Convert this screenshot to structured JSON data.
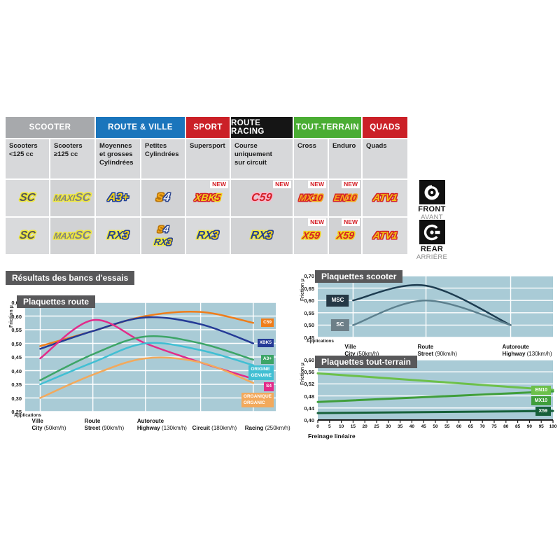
{
  "table": {
    "new_label": "NEW",
    "groups": [
      {
        "label": "SCOOTER",
        "color": "#a7a9ac",
        "span": 2
      },
      {
        "label": "ROUTE & VILLE",
        "color": "#1a75bc",
        "span": 2
      },
      {
        "label": "SPORT",
        "color": "#cb2027",
        "span": 1
      },
      {
        "label": "ROUTE RACING",
        "color": "#151515",
        "span": 1
      },
      {
        "label": "TOUT-TERRAIN",
        "color": "#4aad33",
        "span": 2
      },
      {
        "label": "QUADS",
        "color": "#cb2027",
        "span": 1
      }
    ],
    "subheaders": [
      "Scooters\n<125 cc",
      "Scooters\n≥125 cc",
      "Moyennes\net grosses\nCylindrées",
      "Petites\nCylindrées",
      "Supersport",
      "Course\nuniquement\nsur circuit",
      "Cross",
      "Enduro",
      "Quads"
    ],
    "rows": [
      {
        "side": "front",
        "cells": [
          {
            "logos": [
              [
                {
                  "t": "SC",
                  "c": "#55565a",
                  "o": "#eee73d"
                }
              ]
            ]
          },
          {
            "logos": [
              [
                {
                  "t": "MAXI",
                  "c": "#808184",
                  "o": "#eee73d",
                  "fs": 12
                },
                {
                  "t": "SC",
                  "c": "#808184",
                  "o": "#eee73d",
                  "small": true
                }
              ]
            ]
          },
          {
            "logos": [
              [
                {
                  "t": "A3+",
                  "c": "#f2d11b",
                  "o": "#1e3f9a"
                }
              ]
            ]
          },
          {
            "logos": [
              [
                {
                  "t": "S",
                  "c": "#f5a81c",
                  "o": "#b97508"
                },
                {
                  "t": "4",
                  "c": "#e8ebf4",
                  "o": "#27418d"
                }
              ]
            ]
          },
          {
            "new": true,
            "logos": [
              [
                {
                  "t": "XBK",
                  "c": "#f2d11b",
                  "o": "#d42027",
                  "fs": 14
                },
                {
                  "t": "5",
                  "c": "#d42027",
                  "o": "#f2d11b",
                  "fs": 14
                }
              ]
            ]
          },
          {
            "new": true,
            "logos": [
              [
                {
                  "t": "C59",
                  "c": "#d42027",
                  "o": "#f8b8cd"
                }
              ]
            ]
          },
          {
            "new": true,
            "logos": [
              [
                {
                  "t": "MX",
                  "c": "#f5a81c",
                  "o": "#d42027",
                  "fs": 13
                },
                {
                  "t": "10",
                  "c": "#d42027",
                  "o": "#f5a81c",
                  "fs": 13
                }
              ]
            ]
          },
          {
            "new": true,
            "logos": [
              [
                {
                  "t": "EN",
                  "c": "#f5a81c",
                  "o": "#d42027",
                  "fs": 13
                },
                {
                  "t": "10",
                  "c": "#d42027",
                  "o": "#f5a81c",
                  "fs": 13
                }
              ]
            ]
          },
          {
            "logos": [
              [
                {
                  "t": "ATV1",
                  "c": "#f2c513",
                  "o": "#d42027",
                  "fs": 14
                }
              ]
            ]
          }
        ]
      },
      {
        "side": "rear",
        "cells": [
          {
            "logos": [
              [
                {
                  "t": "SC",
                  "c": "#55565a",
                  "o": "#eee73d"
                }
              ]
            ]
          },
          {
            "logos": [
              [
                {
                  "t": "MAXI",
                  "c": "#808184",
                  "o": "#eee73d",
                  "fs": 12
                },
                {
                  "t": "SC",
                  "c": "#808184",
                  "o": "#eee73d",
                  "small": true
                }
              ]
            ]
          },
          {
            "logos": [
              [
                {
                  "t": "RX",
                  "c": "#27418d",
                  "o": "#eee73d"
                },
                {
                  "t": "3",
                  "c": "#f2d11b",
                  "o": "#27418d"
                }
              ]
            ]
          },
          {
            "logos": [
              [
                {
                  "t": "S",
                  "c": "#f5a81c",
                  "o": "#b97508",
                  "fs": 13
                },
                {
                  "t": "4",
                  "c": "#e8ebf4",
                  "o": "#27418d",
                  "fs": 13
                }
              ],
              [
                {
                  "t": "RX",
                  "c": "#27418d",
                  "o": "#eee73d",
                  "fs": 13
                },
                {
                  "t": "3",
                  "c": "#f2d11b",
                  "o": "#27418d",
                  "fs": 13
                }
              ]
            ]
          },
          {
            "logos": [
              [
                {
                  "t": "RX",
                  "c": "#27418d",
                  "o": "#eee73d"
                },
                {
                  "t": "3",
                  "c": "#f2d11b",
                  "o": "#27418d"
                }
              ]
            ]
          },
          {
            "logos": [
              [
                {
                  "t": "RX",
                  "c": "#27418d",
                  "o": "#eee73d"
                },
                {
                  "t": "3",
                  "c": "#f2d11b",
                  "o": "#27418d"
                }
              ]
            ]
          },
          {
            "new": true,
            "logos": [
              [
                {
                  "t": "X59",
                  "c": "#d42027",
                  "o": "#f2d11b",
                  "fs": 14
                }
              ]
            ]
          },
          {
            "new": true,
            "logos": [
              [
                {
                  "t": "X59",
                  "c": "#d42027",
                  "o": "#f2d11b",
                  "fs": 14
                }
              ]
            ]
          },
          {
            "logos": [
              [
                {
                  "t": "ATV1",
                  "c": "#f2c513",
                  "o": "#d42027",
                  "fs": 14
                }
              ]
            ]
          }
        ]
      }
    ]
  },
  "axles": {
    "front_en": "FRONT",
    "front_fr": "AVANT",
    "rear_en": "REAR",
    "rear_fr": "ARRIÈRE"
  },
  "section_title": "Résultats des bancs d'essais",
  "chart_data": [
    {
      "key": "route",
      "type": "line",
      "title": "Plaquettes route",
      "ylabel": "Friction μ",
      "x_caption": "Applications",
      "ylim": [
        0.25,
        0.65
      ],
      "ytick_step": 0.05,
      "grid": true,
      "legend_position": "end",
      "plot_bg": "#a9cbd6",
      "categories": [
        {
          "top": "Ville",
          "name": "City",
          "speed": "(50km/h)"
        },
        {
          "top": "Route",
          "name": "Street",
          "speed": "(90km/h)"
        },
        {
          "top": "Autoroute",
          "name": "Highway",
          "speed": "(130km/h)"
        },
        {
          "top": "",
          "name": "Circuit",
          "speed": "(180km/h)"
        },
        {
          "top": "",
          "name": "Racing",
          "speed": "(250km/h)"
        }
      ],
      "series": [
        {
          "name": "C59",
          "legend": [
            "C59"
          ],
          "color": "#ef7d1a",
          "values": [
            0.49,
            0.545,
            0.6,
            0.615,
            0.575
          ]
        },
        {
          "name": "XBK5",
          "legend": [
            "XBK5"
          ],
          "color": "#243a96",
          "values": [
            0.48,
            0.545,
            0.595,
            0.57,
            0.5
          ]
        },
        {
          "name": "S4",
          "legend": [
            "S4"
          ],
          "color": "#e22b8a",
          "values": [
            0.445,
            0.585,
            0.5,
            0.43,
            0.37
          ]
        },
        {
          "name": "A3+",
          "legend": [
            "A3+"
          ],
          "color": "#3da567",
          "values": [
            0.365,
            0.46,
            0.525,
            0.5,
            0.44
          ]
        },
        {
          "name": "ORIGINE / GENUINE",
          "legend": [
            "ORIGINE",
            "GENUINE"
          ],
          "color": "#41bfd3",
          "values": [
            0.35,
            0.43,
            0.5,
            0.475,
            0.42
          ]
        },
        {
          "name": "ORGANIQUE / ORGANIC",
          "legend": [
            "ORGANIQUE",
            "ORGANIC"
          ],
          "color": "#f2a95c",
          "values": [
            0.3,
            0.385,
            0.445,
            0.43,
            0.355
          ]
        }
      ]
    },
    {
      "key": "scooter",
      "type": "line",
      "title": "Plaquettes scooter",
      "ylabel": "Friction μ",
      "x_caption": "Applications",
      "ylim": [
        0.45,
        0.7
      ],
      "ytick_step": 0.05,
      "grid": true,
      "legend_position": "start",
      "plot_bg": "#a9cbd6",
      "categories": [
        {
          "top": "Ville",
          "name": "City",
          "speed": "(50km/h)"
        },
        {
          "top": "Route",
          "name": "Street",
          "speed": "(90km/h)"
        },
        {
          "top": "Autoroute",
          "name": "Highway",
          "speed": "(130km/h)"
        }
      ],
      "series": [
        {
          "name": "MSC",
          "legend": [
            "MSC"
          ],
          "color": "#1d3c50",
          "box": "#253845",
          "values": [
            0.6,
            0.66,
            0.5
          ]
        },
        {
          "name": "SC",
          "legend": [
            "SC"
          ],
          "color": "#5d808e",
          "box": "#6d7f88",
          "values": [
            0.5,
            0.6,
            0.5
          ]
        }
      ]
    },
    {
      "key": "terrain",
      "type": "line",
      "title": "Plaquettes tout-terrain",
      "ylabel": "Friction μ",
      "xlabel": "Freinage linéaire",
      "ylim": [
        0.4,
        0.6
      ],
      "ytick_step": 0.04,
      "grid": true,
      "legend_position": "end",
      "plot_bg": "#a9cbd6",
      "x_axis": {
        "min": 0,
        "max": 100,
        "tick_step": 5
      },
      "series": [
        {
          "name": "EN10",
          "legend": [
            "EN10"
          ],
          "color": "#6cc04a",
          "points": [
            [
              0,
              0.555
            ],
            [
              100,
              0.5
            ]
          ]
        },
        {
          "name": "MX10",
          "legend": [
            "MX10"
          ],
          "color": "#3f9e3a",
          "points": [
            [
              0,
              0.46
            ],
            [
              100,
              0.495
            ]
          ]
        },
        {
          "name": "X59",
          "legend": [
            "X59"
          ],
          "color": "#16603a",
          "points": [
            [
              0,
              0.423
            ],
            [
              100,
              0.43
            ]
          ]
        }
      ]
    }
  ]
}
